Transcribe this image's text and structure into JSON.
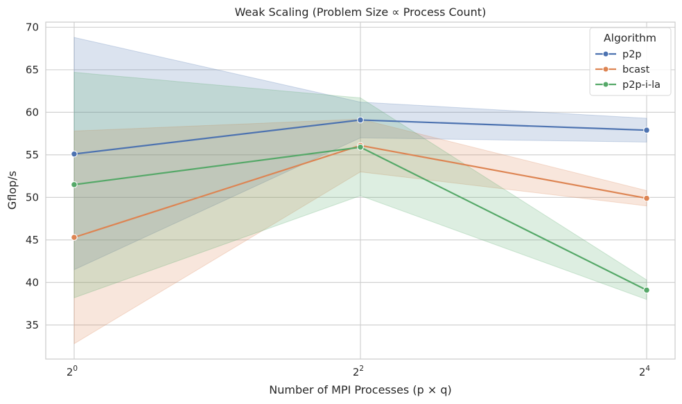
{
  "chart_data": {
    "type": "line",
    "title": "Weak Scaling (Problem Size ∝ Process Count)",
    "xlabel": "Number of MPI Processes (p × q)",
    "ylabel": "Gflop/s",
    "x_scale": "log2",
    "x": [
      1,
      4,
      16
    ],
    "x_tick_labels": [
      {
        "base": "2",
        "exp": "0"
      },
      {
        "base": "2",
        "exp": "2"
      },
      {
        "base": "2",
        "exp": "4"
      }
    ],
    "ylim": [
      31,
      70.6
    ],
    "y_ticks": [
      35,
      40,
      45,
      50,
      55,
      60,
      65,
      70
    ],
    "grid": true,
    "legend": {
      "title": "Algorithm",
      "placement": "top-right"
    },
    "series": [
      {
        "name": "p2p",
        "color": "#4c72b0",
        "values": [
          55.1,
          59.1,
          57.9
        ],
        "ci_low": [
          41.5,
          57.0,
          56.5
        ],
        "ci_high": [
          68.8,
          61.2,
          59.3
        ]
      },
      {
        "name": "bcast",
        "color": "#dd8452",
        "values": [
          45.3,
          56.1,
          49.9
        ],
        "ci_low": [
          32.8,
          53.0,
          49.0
        ],
        "ci_high": [
          57.8,
          59.2,
          50.8
        ]
      },
      {
        "name": "p2p-i-la",
        "color": "#55a868",
        "values": [
          51.5,
          55.9,
          39.1
        ],
        "ci_low": [
          38.2,
          50.2,
          38.0
        ],
        "ci_high": [
          64.7,
          61.7,
          40.3
        ]
      }
    ]
  }
}
